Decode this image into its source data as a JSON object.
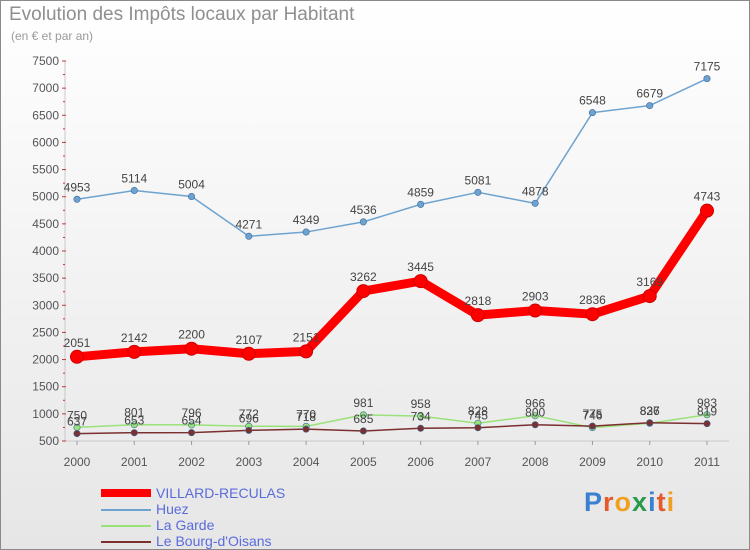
{
  "chart_data": {
    "type": "line",
    "title": "Evolution des Impôts locaux par Habitant",
    "subtitle": "(en € et par an)",
    "xlabel": "",
    "ylabel": "",
    "categories": [
      "2000",
      "2001",
      "2002",
      "2003",
      "2004",
      "2005",
      "2006",
      "2007",
      "2008",
      "2009",
      "2010",
      "2011"
    ],
    "ylim": [
      500,
      7500
    ],
    "yticks": [
      500,
      1000,
      1500,
      2000,
      2500,
      3000,
      3500,
      4000,
      4500,
      5000,
      5500,
      6000,
      6500,
      7000,
      7500
    ],
    "grid": false,
    "legend_position": "bottom-left",
    "series": [
      {
        "name": "VILLARD-RECULAS",
        "color": "#ff0000",
        "values": [
          2051,
          2142,
          2200,
          2107,
          2151,
          3262,
          3445,
          2818,
          2903,
          2836,
          3169,
          4743
        ]
      },
      {
        "name": "Huez",
        "color": "#6ea3cf",
        "values": [
          4953,
          5114,
          5004,
          4271,
          4349,
          4536,
          4859,
          5081,
          4878,
          6548,
          6679,
          7175
        ]
      },
      {
        "name": "La Garde",
        "color": "#99e27a",
        "values": [
          750,
          801,
          796,
          772,
          770,
          981,
          958,
          828,
          966,
          746,
          827,
          983
        ]
      },
      {
        "name": "Le Bourg-d'Oisans",
        "color": "#7b2f2f",
        "values": [
          637,
          653,
          654,
          696,
          718,
          685,
          734,
          745,
          800,
          775,
          836,
          819
        ]
      }
    ]
  },
  "legend": {
    "items": [
      "VILLARD-RECULAS",
      "Huez",
      "La Garde",
      "Le Bourg-d'Oisans"
    ]
  },
  "logo": {
    "letters": [
      "P",
      "r",
      "o",
      "x",
      "i",
      "t",
      "i"
    ],
    "colors": [
      "#3a7fd0",
      "#e45a2a",
      "#f0a020",
      "#2a9a4a",
      "#3a7fd0",
      "#e45a2a",
      "#f0a020"
    ]
  }
}
